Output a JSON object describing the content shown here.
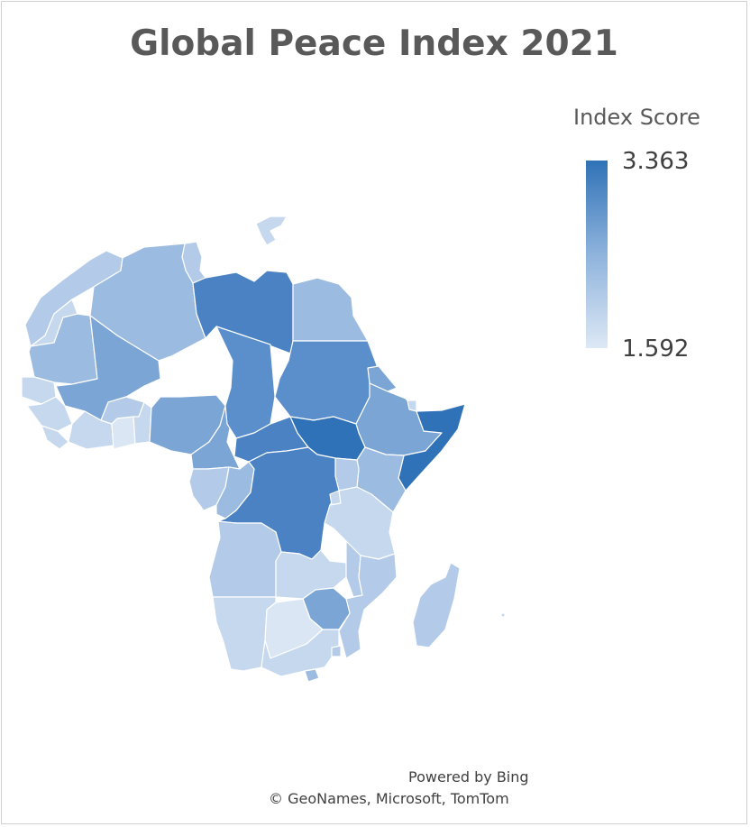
{
  "title": "Global Peace Index 2021",
  "legend": {
    "title": "Index Score",
    "max_label": "3.363",
    "min_label": "1.592",
    "max_color": "#3072b7",
    "min_color": "#dde8f5"
  },
  "credits": {
    "powered_by": "Powered by Bing",
    "copyright": "© GeoNames, Microsoft, TomTom"
  },
  "colors": {
    "very_light": "#dbe6f4",
    "light": "#c6d8ee",
    "light_mid": "#b3cbe8",
    "mid": "#9bbbe0",
    "mid_dark": "#7ba5d5",
    "dark": "#5a8fcb",
    "darker": "#4a82c4",
    "darkest": "#3072b7"
  }
}
